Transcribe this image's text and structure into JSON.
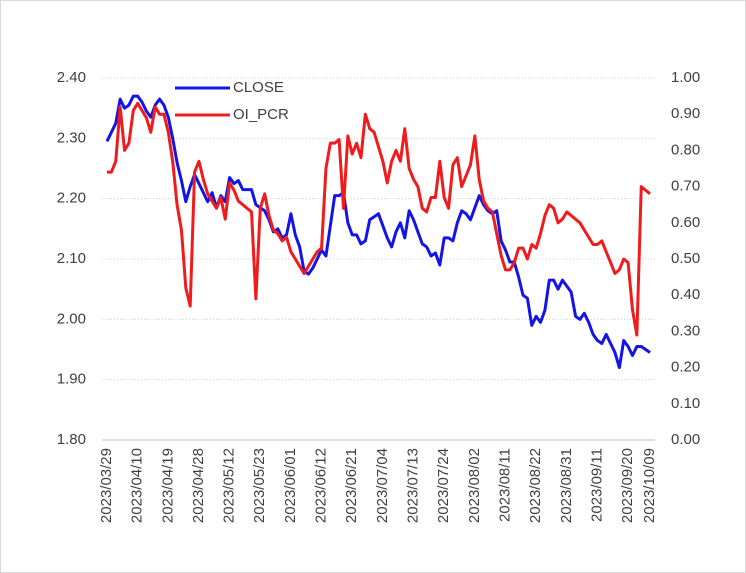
{
  "chart_data": {
    "type": "line",
    "categories": [
      "2023/03/29",
      null,
      null,
      null,
      null,
      null,
      null,
      "2023/04/10",
      null,
      null,
      null,
      null,
      null,
      null,
      "2023/04/19",
      null,
      null,
      null,
      null,
      null,
      null,
      "2023/04/28",
      null,
      null,
      null,
      null,
      null,
      null,
      "2023/05/12",
      null,
      null,
      null,
      null,
      null,
      null,
      "2023/05/23",
      null,
      null,
      null,
      null,
      null,
      null,
      "2023/06/01",
      null,
      null,
      null,
      null,
      null,
      null,
      "2023/06/12",
      null,
      null,
      null,
      null,
      null,
      null,
      "2023/06/21",
      null,
      null,
      null,
      null,
      null,
      null,
      "2023/07/04",
      null,
      null,
      null,
      null,
      null,
      null,
      "2023/07/13",
      null,
      null,
      null,
      null,
      null,
      null,
      "2023/07/24",
      null,
      null,
      null,
      null,
      null,
      null,
      "2023/08/02",
      null,
      null,
      null,
      null,
      null,
      null,
      "2023/08/11",
      null,
      null,
      null,
      null,
      null,
      null,
      "2023/08/22",
      null,
      null,
      null,
      null,
      null,
      null,
      "2023/08/31",
      null,
      null,
      null,
      null,
      null,
      null,
      "2023/09/11",
      null,
      null,
      null,
      null,
      null,
      null,
      "2023/09/20",
      null,
      null,
      null,
      null,
      "2023/10/09"
    ],
    "series": [
      {
        "name": "CLOSE",
        "color": "#1414e6",
        "values": [
          2.295,
          2.31,
          2.325,
          2.365,
          2.35,
          2.355,
          2.37,
          2.37,
          2.36,
          2.345,
          2.335,
          2.355,
          2.365,
          2.355,
          2.335,
          2.3,
          2.26,
          2.23,
          2.195,
          2.22,
          2.24,
          2.225,
          2.21,
          2.195,
          2.21,
          2.185,
          2.205,
          2.195,
          2.235,
          2.225,
          2.23,
          2.215,
          2.215,
          2.215,
          2.19,
          2.185,
          2.18,
          2.165,
          2.145,
          2.15,
          2.135,
          2.14,
          2.175,
          2.14,
          2.12,
          2.08,
          2.075,
          2.085,
          2.1,
          2.115,
          2.105,
          2.155,
          2.205,
          2.205,
          2.21,
          2.16,
          2.14,
          2.14,
          2.125,
          2.13,
          2.165,
          2.17,
          2.175,
          2.155,
          2.135,
          2.12,
          2.145,
          2.16,
          2.135,
          2.18,
          2.165,
          2.145,
          2.125,
          2.12,
          2.105,
          2.11,
          2.09,
          2.135,
          2.135,
          2.13,
          2.16,
          2.18,
          2.175,
          2.165,
          2.185,
          2.205,
          2.19,
          2.18,
          2.175,
          2.18,
          2.13,
          2.115,
          2.095,
          2.095,
          2.07,
          2.04,
          2.035,
          1.99,
          2.005,
          1.995,
          2.015,
          2.065,
          2.065,
          2.05,
          2.065,
          2.055,
          2.045,
          2.005,
          2.0,
          2.01,
          1.995,
          1.975,
          1.965,
          1.96,
          1.975,
          1.96,
          1.945,
          1.92,
          1.965,
          1.955,
          1.94,
          1.955,
          1.955,
          1.95,
          1.945
        ]
      },
      {
        "name": "OI_PCR",
        "color": "#ee1c1c",
        "axis": "y2",
        "values": [
          0.74,
          0.74,
          0.77,
          0.92,
          0.8,
          0.82,
          0.91,
          0.93,
          0.91,
          0.89,
          0.85,
          0.92,
          0.9,
          0.9,
          0.85,
          0.77,
          0.65,
          0.58,
          0.42,
          0.37,
          0.74,
          0.77,
          0.72,
          0.68,
          0.66,
          0.64,
          0.67,
          0.61,
          0.71,
          0.69,
          0.66,
          0.65,
          0.64,
          0.63,
          0.39,
          0.64,
          0.68,
          0.62,
          0.58,
          0.57,
          0.55,
          0.56,
          0.52,
          0.5,
          0.48,
          0.46,
          0.48,
          0.5,
          0.52,
          0.53,
          0.75,
          0.82,
          0.82,
          0.83,
          0.64,
          0.84,
          0.79,
          0.82,
          0.78,
          0.9,
          0.86,
          0.85,
          0.81,
          0.77,
          0.71,
          0.77,
          0.8,
          0.77,
          0.86,
          0.75,
          0.72,
          0.7,
          0.64,
          0.63,
          0.67,
          0.67,
          0.77,
          0.67,
          0.64,
          0.76,
          0.78,
          0.7,
          0.73,
          0.76,
          0.84,
          0.72,
          0.66,
          0.64,
          0.63,
          0.57,
          0.51,
          0.47,
          0.47,
          0.49,
          0.53,
          0.53,
          0.5,
          0.54,
          0.53,
          0.57,
          0.62,
          0.65,
          0.64,
          0.6,
          0.61,
          0.63,
          0.62,
          0.61,
          0.6,
          0.58,
          0.56,
          0.54,
          0.54,
          0.55,
          0.52,
          0.49,
          0.46,
          0.47,
          0.5,
          0.49,
          0.36,
          0.29,
          0.7,
          0.69,
          0.68
        ]
      }
    ],
    "ylim": [
      1.8,
      2.4
    ],
    "yticks": [
      {
        "value": 1.8,
        "label": "1.80"
      },
      {
        "value": 1.9,
        "label": "1.90"
      },
      {
        "value": 2.0,
        "label": "2.00"
      },
      {
        "value": 2.1,
        "label": "2.10"
      },
      {
        "value": 2.2,
        "label": "2.20"
      },
      {
        "value": 2.3,
        "label": "2.30"
      },
      {
        "value": 2.4,
        "label": "2.40"
      }
    ],
    "y2lim": [
      0,
      1
    ],
    "y2ticks": [
      {
        "value": 0,
        "label": "0.00"
      },
      {
        "value": 0.1,
        "label": "0.10"
      },
      {
        "value": 0.2,
        "label": "0.20"
      },
      {
        "value": 0.3,
        "label": "0.30"
      },
      {
        "value": 0.4,
        "label": "0.40"
      },
      {
        "value": 0.5,
        "label": "0.50"
      },
      {
        "value": 0.6,
        "label": "0.60"
      },
      {
        "value": 0.7,
        "label": "0.70"
      },
      {
        "value": 0.8,
        "label": "0.80"
      },
      {
        "value": 0.9,
        "label": "0.90"
      },
      {
        "value": 1,
        "label": "1.00"
      }
    ],
    "grid": true,
    "legend": "top-left"
  }
}
